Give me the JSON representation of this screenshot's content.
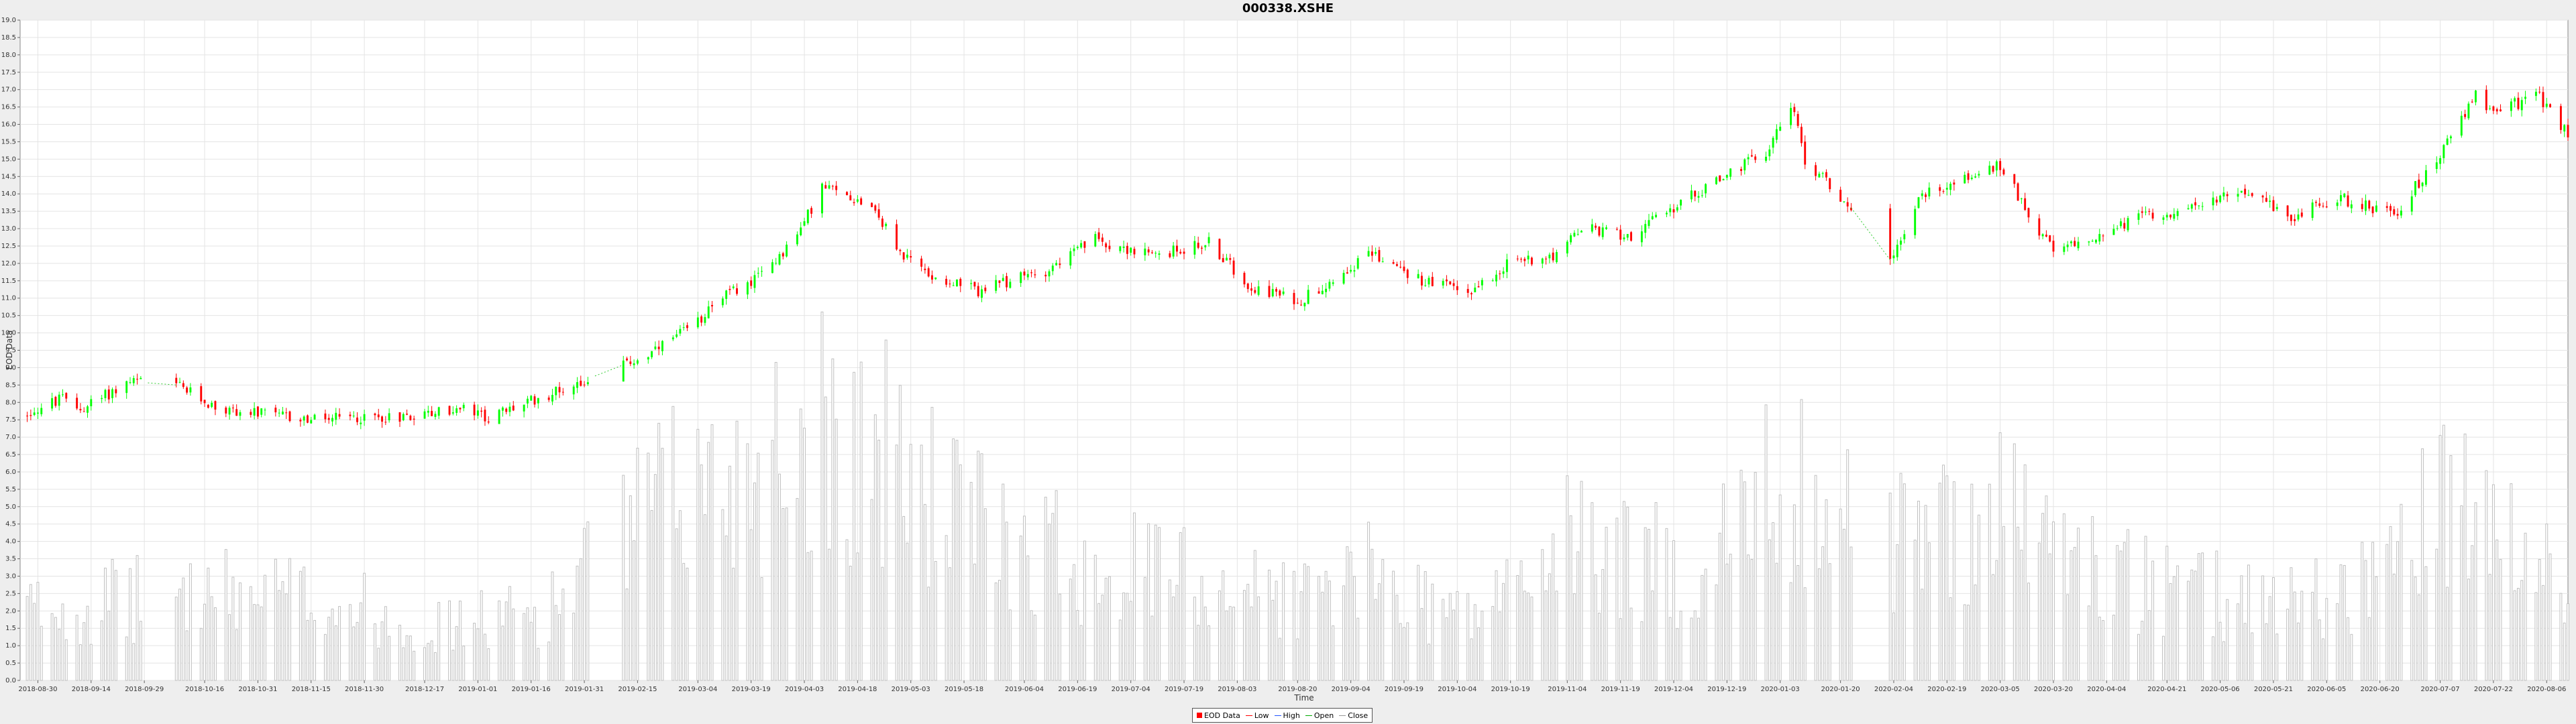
{
  "chart_data": {
    "type": "candlestick",
    "title": "000338.XSHE",
    "xlabel": "Time",
    "ylabel": "EOD Data",
    "ylim": [
      0,
      19
    ],
    "y_ticks": [
      "0.0",
      "0.5",
      "1.0",
      "1.5",
      "2.0",
      "2.5",
      "3.0",
      "3.5",
      "4.0",
      "4.5",
      "5.0",
      "5.5",
      "6.0",
      "6.5",
      "7.0",
      "7.5",
      "8.0",
      "8.5",
      "9.0",
      "9.5",
      "10.0",
      "10.5",
      "11.0",
      "11.5",
      "12.0",
      "12.5",
      "13.0",
      "13.5",
      "14.0",
      "14.5",
      "15.0",
      "15.5",
      "16.0",
      "16.5",
      "17.0",
      "17.5",
      "18.0",
      "18.5",
      "19.0"
    ],
    "x_range": [
      "2018-08-25",
      "2020-08-12"
    ],
    "x_ticks": [
      "2018-08-30",
      "2018-09-14",
      "2018-09-29",
      "2018-10-16",
      "2018-10-31",
      "2018-11-15",
      "2018-11-30",
      "2018-12-17",
      "2019-01-01",
      "2019-01-16",
      "2019-01-31",
      "2019-02-15",
      "2019-03-04",
      "2019-03-19",
      "2019-04-03",
      "2019-04-18",
      "2019-05-03",
      "2019-05-18",
      "2019-06-04",
      "2019-06-19",
      "2019-07-04",
      "2019-07-19",
      "2019-08-03",
      "2019-08-20",
      "2019-09-04",
      "2019-09-19",
      "2019-10-04",
      "2019-10-19",
      "2019-11-04",
      "2019-11-19",
      "2019-12-04",
      "2019-12-19",
      "2020-01-03",
      "2020-01-20",
      "2020-02-04",
      "2020-02-19",
      "2020-03-05",
      "2020-03-20",
      "2020-04-04",
      "2020-04-21",
      "2020-05-06",
      "2020-05-21",
      "2020-06-05",
      "2020-06-20",
      "2020-07-07",
      "2020-07-22",
      "2020-08-06"
    ],
    "price_keypoints": [
      [
        "2018-08-25",
        7.6
      ],
      [
        "2018-09-06",
        8.1
      ],
      [
        "2018-09-11",
        7.8
      ],
      [
        "2018-09-25",
        8.6
      ],
      [
        "2018-10-08",
        8.5
      ],
      [
        "2018-10-20",
        7.8
      ],
      [
        "2018-11-15",
        7.5
      ],
      [
        "2018-12-10",
        7.6
      ],
      [
        "2018-12-28",
        7.8
      ],
      [
        "2019-01-04",
        7.55
      ],
      [
        "2019-01-30",
        8.6
      ],
      [
        "2019-02-19",
        9.4
      ],
      [
        "2019-03-04",
        10.3
      ],
      [
        "2019-03-08",
        10.9
      ],
      [
        "2019-03-20",
        11.5
      ],
      [
        "2019-04-01",
        12.8
      ],
      [
        "2019-04-08",
        14.2
      ],
      [
        "2019-04-22",
        13.7
      ],
      [
        "2019-04-30",
        12.3
      ],
      [
        "2019-05-08",
        11.7
      ],
      [
        "2019-05-22",
        11.2
      ],
      [
        "2019-06-10",
        11.8
      ],
      [
        "2019-06-24",
        12.7
      ],
      [
        "2019-07-10",
        12.2
      ],
      [
        "2019-07-26",
        12.6
      ],
      [
        "2019-08-06",
        11.4
      ],
      [
        "2019-08-20",
        10.9
      ],
      [
        "2019-09-10",
        12.3
      ],
      [
        "2019-09-24",
        11.5
      ],
      [
        "2019-10-08",
        11.2
      ],
      [
        "2019-10-18",
        12.0
      ],
      [
        "2019-11-02",
        12.3
      ],
      [
        "2019-11-08",
        13.0
      ],
      [
        "2019-11-22",
        12.8
      ],
      [
        "2019-12-10",
        14.0
      ],
      [
        "2019-12-30",
        15.2
      ],
      [
        "2020-01-06",
        16.6
      ],
      [
        "2020-01-10",
        15.0
      ],
      [
        "2020-01-23",
        13.6
      ],
      [
        "2020-02-03",
        12.1
      ],
      [
        "2020-02-12",
        14.0
      ],
      [
        "2020-03-05",
        14.8
      ],
      [
        "2020-03-20",
        12.3
      ],
      [
        "2020-03-30",
        12.7
      ],
      [
        "2020-04-15",
        13.4
      ],
      [
        "2020-04-30",
        13.6
      ],
      [
        "2020-05-12",
        14.2
      ],
      [
        "2020-05-25",
        13.3
      ],
      [
        "2020-06-08",
        13.9
      ],
      [
        "2020-06-24",
        13.4
      ],
      [
        "2020-07-06",
        15.0
      ],
      [
        "2020-07-17",
        16.8
      ],
      [
        "2020-07-22",
        16.4
      ],
      [
        "2020-08-04",
        16.8
      ],
      [
        "2020-08-12",
        15.7
      ]
    ],
    "volume_keypoints": [
      [
        "2018-08-25",
        2.0
      ],
      [
        "2018-10-15",
        2.5
      ],
      [
        "2018-11-15",
        2.4
      ],
      [
        "2018-12-20",
        1.5
      ],
      [
        "2019-01-20",
        2.0
      ],
      [
        "2019-02-20",
        5.0
      ],
      [
        "2019-03-15",
        6.0
      ],
      [
        "2019-04-10",
        7.5
      ],
      [
        "2019-04-25",
        6.5
      ],
      [
        "2019-05-20",
        4.5
      ],
      [
        "2019-06-20",
        3.5
      ],
      [
        "2019-07-20",
        3.0
      ],
      [
        "2019-08-20",
        2.4
      ],
      [
        "2019-09-10",
        3.0
      ],
      [
        "2019-10-08",
        1.8
      ],
      [
        "2019-11-05",
        4.0
      ],
      [
        "2019-12-10",
        3.0
      ],
      [
        "2020-01-06",
        6.0
      ],
      [
        "2020-01-20",
        4.5
      ],
      [
        "2020-02-10",
        4.0
      ],
      [
        "2020-03-05",
        5.0
      ],
      [
        "2020-03-25",
        3.5
      ],
      [
        "2020-04-20",
        2.5
      ],
      [
        "2020-05-15",
        2.4
      ],
      [
        "2020-06-10",
        2.5
      ],
      [
        "2020-07-10",
        5.0
      ],
      [
        "2020-08-12",
        2.5
      ]
    ],
    "trading_gaps": [
      [
        "2018-10-01",
        "2018-10-07"
      ],
      [
        "2019-02-04",
        "2019-02-10"
      ],
      [
        "2020-01-24",
        "2020-02-02"
      ]
    ],
    "colors": {
      "up": "#00ff00",
      "down": "#ff0000",
      "volume": "#c0c0c0",
      "grid": "#e4e4e4"
    },
    "grid": true,
    "legend_position": "bottom-center"
  },
  "legend": {
    "items": [
      {
        "label": "EOD Data",
        "marker": "box",
        "color": "#ff0000"
      },
      {
        "label": "Low",
        "marker": "line",
        "color": "#ff0000"
      },
      {
        "label": "High",
        "marker": "line",
        "color": "#2255ff"
      },
      {
        "label": "Open",
        "marker": "line",
        "color": "#00aa00"
      },
      {
        "label": "Close",
        "marker": "line",
        "color": "#999999"
      }
    ]
  }
}
